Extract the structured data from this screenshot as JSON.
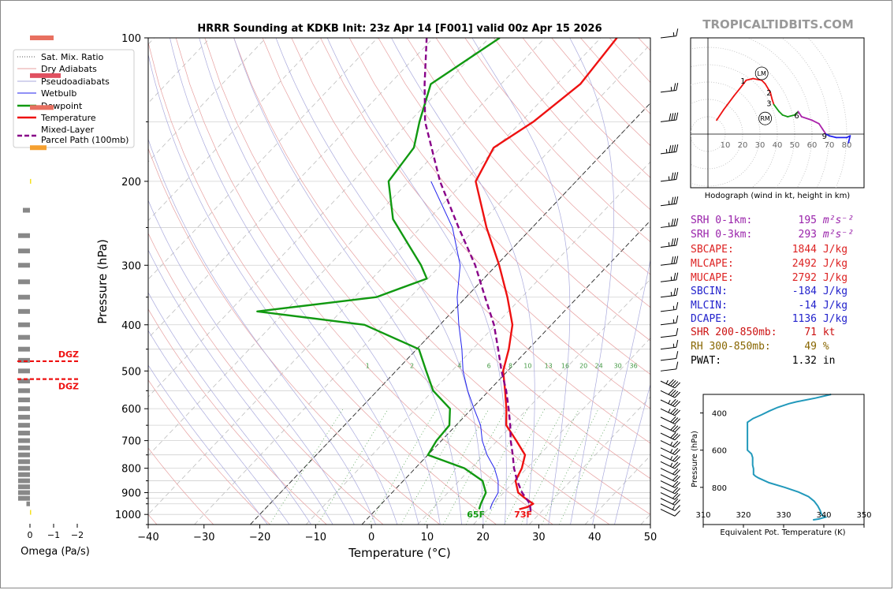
{
  "title": "HRRR Sounding at KDKB Init: 23z Apr 14 [F001] valid 00z Apr 15 2026",
  "watermark": "TROPICALTIDBITS.COM",
  "chart_data": [
    {
      "type": "line",
      "name": "skew-t",
      "xlabel": "Temperature (°C)",
      "ylabel": "Pressure (hPa)",
      "xlim": [
        -40,
        50
      ],
      "ylim": [
        1050,
        100
      ],
      "skew_deg_per_log": 25,
      "xticks": [
        "−40",
        "−30",
        "−20",
        "−10",
        "0",
        "10",
        "20",
        "30",
        "40",
        "50"
      ],
      "xtick_values": [
        -40,
        -30,
        -20,
        -10,
        0,
        10,
        20,
        30,
        40,
        50
      ],
      "yticks": [
        "100",
        "200",
        "300",
        "400",
        "500",
        "600",
        "700",
        "800",
        "900",
        "1000"
      ],
      "ytick_values": [
        100,
        200,
        300,
        400,
        500,
        600,
        700,
        800,
        900,
        1000
      ],
      "legend": [
        "Sat. Mix. Ratio",
        "Dry Adiabats",
        "Pseudoadiabats",
        "Wetbulb",
        "Dewpoint",
        "Temperature",
        "Mixed-Layer",
        "Parcel Path (100mb)"
      ],
      "mixing_ratio_labels": [
        "1",
        "2",
        "4",
        "6",
        "8",
        "10",
        "13",
        "16",
        "20",
        "24",
        "30",
        "36"
      ],
      "mixing_ratio_values": [
        1,
        2,
        4,
        6,
        8,
        10,
        13,
        16,
        20,
        24,
        30,
        36
      ],
      "series": [
        {
          "name": "Temperature",
          "color": "#ee1111",
          "points": [
            [
              975,
              25.6
            ],
            [
              965,
              26.7
            ],
            [
              950,
              27.2
            ],
            [
              925,
              24.8
            ],
            [
              900,
              22.6
            ],
            [
              850,
              20.1
            ],
            [
              800,
              19.1
            ],
            [
              750,
              17.4
            ],
            [
              700,
              13.4
            ],
            [
              650,
              9.0
            ],
            [
              600,
              6.2
            ],
            [
              550,
              2.9
            ],
            [
              500,
              -0.8
            ],
            [
              450,
              -3.5
            ],
            [
              400,
              -7.0
            ],
            [
              350,
              -12.6
            ],
            [
              300,
              -19.5
            ],
            [
              250,
              -28.2
            ],
            [
              200,
              -38.0
            ],
            [
              170,
              -40.5
            ],
            [
              150,
              -37.8
            ],
            [
              125,
              -35.8
            ],
            [
              100,
              -37.1
            ]
          ]
        },
        {
          "name": "Dewpoint",
          "color": "#119911",
          "points": [
            [
              975,
              18.4
            ],
            [
              950,
              17.8
            ],
            [
              900,
              16.8
            ],
            [
              850,
              14.2
            ],
            [
              800,
              8.8
            ],
            [
              750,
              0.0
            ],
            [
              700,
              -0.9
            ],
            [
              650,
              -1.2
            ],
            [
              600,
              -3.9
            ],
            [
              550,
              -10.0
            ],
            [
              500,
              -14.6
            ],
            [
              450,
              -19.6
            ],
            [
              400,
              -33.5
            ],
            [
              375,
              -55.0
            ],
            [
              350,
              -36.1
            ],
            [
              320,
              -30.2
            ],
            [
              300,
              -33.5
            ],
            [
              270,
              -39.6
            ],
            [
              240,
              -46.4
            ],
            [
              200,
              -53.6
            ],
            [
              170,
              -54.8
            ],
            [
              150,
              -58.2
            ],
            [
              125,
              -62.6
            ],
            [
              100,
              -58.1
            ]
          ]
        },
        {
          "name": "Wetbulb",
          "color": "#2222ee",
          "points": [
            [
              975,
              20.4
            ],
            [
              950,
              19.8
            ],
            [
              900,
              19.0
            ],
            [
              850,
              17.0
            ],
            [
              800,
              14.2
            ],
            [
              750,
              10.6
            ],
            [
              700,
              7.3
            ],
            [
              650,
              4.4
            ],
            [
              600,
              0.4
            ],
            [
              550,
              -3.8
            ],
            [
              500,
              -8.0
            ],
            [
              450,
              -11.9
            ],
            [
              400,
              -16.6
            ],
            [
              350,
              -21.6
            ],
            [
              300,
              -26.5
            ],
            [
              250,
              -34.3
            ],
            [
              200,
              -46.0
            ]
          ]
        },
        {
          "name": "Parcel Path",
          "color": "#880088",
          "dashed": true,
          "points": [
            [
              985,
              28.0
            ],
            [
              950,
              26.6
            ],
            [
              900,
              23.3
            ],
            [
              850,
              20.4
            ],
            [
              800,
              17.7
            ],
            [
              750,
              15.2
            ],
            [
              700,
              12.4
            ],
            [
              650,
              9.7
            ],
            [
              600,
              6.6
            ],
            [
              550,
              3.1
            ],
            [
              500,
              -1.1
            ],
            [
              450,
              -5.4
            ],
            [
              400,
              -10.3
            ],
            [
              350,
              -16.6
            ],
            [
              300,
              -23.8
            ],
            [
              250,
              -33.2
            ],
            [
              200,
              -44.4
            ],
            [
              150,
              -57.2
            ],
            [
              125,
              -63.7
            ],
            [
              100,
              -71.2
            ]
          ]
        }
      ],
      "surface_labels": {
        "dewpoint": "65F",
        "temperature": "73F"
      }
    },
    {
      "type": "line",
      "name": "hodograph",
      "caption": "Hodograph (wind in kt, height in km)",
      "ring_labels": [
        "10",
        "20",
        "30",
        "40",
        "50",
        "60",
        "70",
        "80"
      ],
      "ring_values": [
        10,
        20,
        30,
        40,
        50,
        60,
        70,
        80
      ],
      "height_labels": [
        {
          "label": "1",
          "u": 22,
          "v": 31
        },
        {
          "label": "2",
          "u": 37,
          "v": 24
        },
        {
          "label": "3",
          "u": 37,
          "v": 18
        },
        {
          "label": "6",
          "u": 53,
          "v": 11
        },
        {
          "label": "9",
          "u": 69,
          "v": -1
        }
      ],
      "markers": [
        {
          "label": "LM",
          "u": 31,
          "v": 35
        },
        {
          "label": "RM",
          "u": 33,
          "v": 9
        }
      ],
      "path_points": [
        [
          5,
          8
        ],
        [
          9,
          14
        ],
        [
          15,
          22
        ],
        [
          19,
          27
        ],
        [
          22,
          31
        ],
        [
          26,
          32
        ],
        [
          31,
          31
        ],
        [
          33,
          29
        ],
        [
          36,
          24
        ],
        [
          37,
          20
        ],
        [
          38,
          17
        ],
        [
          41,
          13
        ],
        [
          43,
          11
        ],
        [
          46,
          10
        ],
        [
          50,
          11
        ],
        [
          52,
          13
        ],
        [
          54,
          10
        ],
        [
          60,
          8
        ],
        [
          64,
          6
        ],
        [
          66,
          3
        ],
        [
          68,
          0
        ],
        [
          70,
          -1
        ],
        [
          74,
          -2
        ],
        [
          80,
          -2
        ],
        [
          82,
          -1
        ],
        [
          81,
          -5
        ]
      ],
      "segment_colors": [
        "#ee1111",
        "#ee1111",
        "#ee1111",
        "#ee1111",
        "#ee1111",
        "#ee1111",
        "#ee1111",
        "#ee1111",
        "#ee1111",
        "#ee1111",
        "#119911",
        "#119911",
        "#119911",
        "#119911",
        "#119911",
        "#aa22aa",
        "#aa22aa",
        "#aa22aa",
        "#aa22aa",
        "#aa22aa",
        "#2222ee",
        "#2222ee",
        "#2222ee",
        "#2222ee",
        "#2222ee"
      ]
    },
    {
      "type": "line",
      "name": "theta-e",
      "xlabel": "Equivalent Pot. Temperature (K)",
      "ylabel": "Pressure (hPa)",
      "xlim": [
        310,
        350
      ],
      "ylim": [
        1000,
        300
      ],
      "xticks": [
        "310",
        "320",
        "330",
        "340",
        "350"
      ],
      "xtick_values": [
        310,
        320,
        330,
        340,
        350
      ],
      "yticks": [
        "400",
        "600",
        "800"
      ],
      "ytick_values": [
        400,
        600,
        800
      ],
      "series": [
        {
          "name": "Theta-E",
          "color": "#2299bb",
          "points": [
            [
              975,
              337.3
            ],
            [
              970,
              338.8
            ],
            [
              960,
              340.4
            ],
            [
              950,
              339.5
            ],
            [
              925,
              339.1
            ],
            [
              900,
              338.5
            ],
            [
              875,
              337.6
            ],
            [
              850,
              336.2
            ],
            [
              825,
              333.7
            ],
            [
              800,
              330.3
            ],
            [
              775,
              326.4
            ],
            [
              750,
              323.8
            ],
            [
              740,
              323.0
            ],
            [
              730,
              322.5
            ],
            [
              720,
              322.5
            ],
            [
              700,
              322.5
            ],
            [
              680,
              322.3
            ],
            [
              660,
              322.3
            ],
            [
              640,
              322.3
            ],
            [
              620,
              322.0
            ],
            [
              600,
              321.0
            ],
            [
              560,
              321.0
            ],
            [
              520,
              321.0
            ],
            [
              480,
              321.0
            ],
            [
              450,
              321.0
            ],
            [
              430,
              322.4
            ],
            [
              410,
              324.5
            ],
            [
              390,
              326.4
            ],
            [
              370,
              328.5
            ],
            [
              350,
              331.3
            ],
            [
              340,
              333.2
            ],
            [
              320,
              337.9
            ],
            [
              300,
              341.8
            ]
          ]
        }
      ]
    },
    {
      "type": "bar",
      "name": "omega",
      "xlabel": "Omega (Pa/s)",
      "xticks": [
        "0",
        "−1",
        "−2"
      ],
      "xtick_values": [
        0,
        -1,
        -2
      ],
      "bars": [
        {
          "p": 100,
          "v": -1.0,
          "c": "#e87060"
        },
        {
          "p": 120,
          "v": -1.3,
          "c": "#e05060"
        },
        {
          "p": 140,
          "v": -1.0,
          "c": "#e87060"
        },
        {
          "p": 170,
          "v": -0.7,
          "c": "#f5a030"
        },
        {
          "p": 200,
          "v": -0.05,
          "c": "#f5e020"
        },
        {
          "p": 230,
          "v": 0.3,
          "c": "#888888"
        },
        {
          "p": 260,
          "v": 0.5,
          "c": "#888888"
        },
        {
          "p": 280,
          "v": 0.5,
          "c": "#888888"
        },
        {
          "p": 300,
          "v": 0.5,
          "c": "#888888"
        },
        {
          "p": 325,
          "v": 0.5,
          "c": "#888888"
        },
        {
          "p": 350,
          "v": 0.5,
          "c": "#888888"
        },
        {
          "p": 375,
          "v": 0.5,
          "c": "#888888"
        },
        {
          "p": 400,
          "v": 0.5,
          "c": "#888888"
        },
        {
          "p": 425,
          "v": 0.5,
          "c": "#888888"
        },
        {
          "p": 450,
          "v": 0.5,
          "c": "#888888"
        },
        {
          "p": 475,
          "v": 0.5,
          "c": "#888888"
        },
        {
          "p": 500,
          "v": 0.5,
          "c": "#888888"
        },
        {
          "p": 525,
          "v": 0.5,
          "c": "#888888"
        },
        {
          "p": 550,
          "v": 0.5,
          "c": "#888888"
        },
        {
          "p": 575,
          "v": 0.5,
          "c": "#888888"
        },
        {
          "p": 600,
          "v": 0.5,
          "c": "#888888"
        },
        {
          "p": 625,
          "v": 0.5,
          "c": "#888888"
        },
        {
          "p": 650,
          "v": 0.5,
          "c": "#888888"
        },
        {
          "p": 675,
          "v": 0.5,
          "c": "#888888"
        },
        {
          "p": 700,
          "v": 0.5,
          "c": "#888888"
        },
        {
          "p": 725,
          "v": 0.5,
          "c": "#888888"
        },
        {
          "p": 750,
          "v": 0.5,
          "c": "#888888"
        },
        {
          "p": 775,
          "v": 0.5,
          "c": "#888888"
        },
        {
          "p": 800,
          "v": 0.5,
          "c": "#888888"
        },
        {
          "p": 825,
          "v": 0.5,
          "c": "#888888"
        },
        {
          "p": 850,
          "v": 0.5,
          "c": "#888888"
        },
        {
          "p": 875,
          "v": 0.5,
          "c": "#888888"
        },
        {
          "p": 900,
          "v": 0.5,
          "c": "#888888"
        },
        {
          "p": 925,
          "v": 0.5,
          "c": "#888888"
        },
        {
          "p": 950,
          "v": 0.15,
          "c": "#888888"
        },
        {
          "p": 990,
          "v": -0.05,
          "c": "#f5e020"
        }
      ],
      "dgz_label": "DGZ",
      "dgz_pressures": [
        477,
        520
      ]
    }
  ],
  "winds": {
    "pressures": [
      100,
      130,
      150,
      175,
      200,
      225,
      250,
      275,
      300,
      325,
      350,
      375,
      400,
      425,
      450,
      475,
      500,
      525,
      550,
      575,
      600,
      625,
      650,
      675,
      700,
      725,
      750,
      775,
      800,
      825,
      850,
      875,
      900,
      925,
      950,
      975
    ],
    "speeds": [
      15,
      25,
      40,
      45,
      35,
      35,
      35,
      35,
      30,
      25,
      25,
      15,
      15,
      10,
      15,
      10,
      10,
      45,
      40,
      35,
      35,
      30,
      30,
      30,
      25,
      25,
      25,
      25,
      20,
      20,
      20,
      20,
      20,
      20,
      15,
      10
    ]
  },
  "stats": [
    {
      "label": "SRH 0-1km:",
      "value": "195",
      "unit": "m²s⁻²",
      "color": "#9922aa"
    },
    {
      "label": "SRH 0-3km:",
      "value": "293",
      "unit": "m²s⁻²",
      "color": "#9922aa"
    },
    {
      "label": "SBCAPE:",
      "value": "1844",
      "unit": "J/kg",
      "color": "#dd2222"
    },
    {
      "label": "MLCAPE:",
      "value": "2492",
      "unit": "J/kg",
      "color": "#dd2222"
    },
    {
      "label": "MUCAPE:",
      "value": "2792",
      "unit": "J/kg",
      "color": "#dd2222"
    },
    {
      "label": "SBCIN:",
      "value": "-184",
      "unit": "J/kg",
      "color": "#2222cc"
    },
    {
      "label": "MLCIN:",
      "value": "-14",
      "unit": "J/kg",
      "color": "#2222cc"
    },
    {
      "label": "DCAPE:",
      "value": "1136",
      "unit": "J/kg",
      "color": "#2222cc"
    },
    {
      "label": "SHR 200-850mb:",
      "value": "71",
      "unit": "kt",
      "color": "#cc1111"
    },
    {
      "label": "RH 300-850mb:",
      "value": "49",
      "unit": "%",
      "color": "#886600"
    },
    {
      "label": "PWAT:",
      "value": "1.32",
      "unit": "in",
      "color": "#000000"
    }
  ]
}
